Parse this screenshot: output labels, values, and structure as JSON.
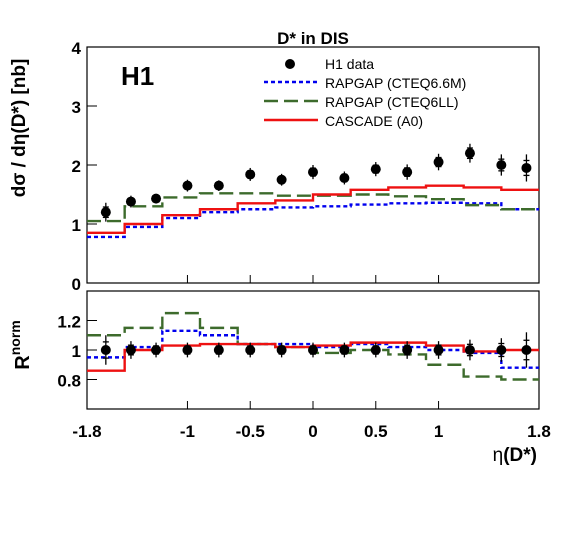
{
  "chart_data": {
    "type": "line",
    "title": "D* in DIS",
    "experiment_label": "H1",
    "x_tick_labels": [
      "-1.8",
      "-1",
      "-0.5",
      "0",
      "0.5",
      "1",
      "1.8"
    ],
    "x_ticks": [
      -1.8,
      -1,
      -0.5,
      0,
      0.5,
      1,
      1.8
    ],
    "xlabel_main": "η",
    "xlabel_suffix": "(D*)",
    "xlim": [
      -1.8,
      1.8
    ],
    "bin_edges": [
      -1.8,
      -1.5,
      -1.2,
      -0.9,
      -0.6,
      -0.3,
      0.0,
      0.3,
      0.6,
      0.9,
      1.2,
      1.5,
      1.8
    ],
    "panels": [
      {
        "id": "top",
        "ylabel": "dσ / dη(D*) [nb]",
        "ylim": [
          0,
          4
        ],
        "y_ticks": [
          0,
          1,
          2,
          3,
          4
        ],
        "y_tick_labels": [
          "0",
          "1",
          "2",
          "3",
          "4"
        ],
        "data": {
          "name": "H1 data",
          "x": [
            -1.65,
            -1.45,
            -1.25,
            -1.0,
            -0.75,
            -0.5,
            -0.25,
            0.0,
            0.25,
            0.5,
            0.75,
            1.0,
            1.25,
            1.5,
            1.7
          ],
          "y": [
            1.2,
            1.38,
            1.43,
            1.65,
            1.65,
            1.84,
            1.75,
            1.88,
            1.78,
            1.93,
            1.88,
            2.05,
            2.2,
            2.0,
            1.95
          ],
          "err": [
            0.16,
            0.1,
            0.08,
            0.1,
            0.09,
            0.11,
            0.1,
            0.12,
            0.11,
            0.12,
            0.13,
            0.14,
            0.16,
            0.18,
            0.23
          ]
        },
        "series": [
          {
            "name": "RAPGAP (CTEQ6.6M)",
            "color": "#0000ee",
            "style": "dotted",
            "values": [
              0.78,
              0.95,
              1.1,
              1.2,
              1.25,
              1.28,
              1.3,
              1.33,
              1.35,
              1.36,
              1.35,
              1.25
            ]
          },
          {
            "name": "RAPGAP (CTEQ6LL)",
            "color": "#3d6b2c",
            "style": "dashed",
            "values": [
              1.05,
              1.3,
              1.45,
              1.52,
              1.52,
              1.48,
              1.48,
              1.5,
              1.47,
              1.42,
              1.32,
              1.25
            ]
          },
          {
            "name": "CASCADE (A0)",
            "color": "#ee1111",
            "style": "solid",
            "values": [
              0.85,
              1.0,
              1.15,
              1.25,
              1.35,
              1.4,
              1.5,
              1.58,
              1.62,
              1.65,
              1.62,
              1.58
            ]
          }
        ]
      },
      {
        "id": "bottom",
        "ylabel_main": "R",
        "ylabel_sup": "norm",
        "ylim": [
          0.6,
          1.4
        ],
        "y_ticks": [
          0.8,
          1.0,
          1.2
        ],
        "y_tick_labels": [
          "0.8",
          "1",
          "1.2"
        ],
        "data": {
          "name": "H1 data",
          "x": [
            -1.65,
            -1.45,
            -1.25,
            -1.0,
            -0.75,
            -0.5,
            -0.25,
            0.0,
            0.25,
            0.5,
            0.75,
            1.0,
            1.25,
            1.5,
            1.7
          ],
          "y": [
            1.0,
            1.0,
            1.0,
            1.0,
            1.0,
            1.0,
            1.0,
            1.0,
            1.0,
            1.0,
            1.0,
            1.0,
            1.0,
            1.0,
            1.0
          ],
          "err": [
            0.1,
            0.06,
            0.05,
            0.05,
            0.05,
            0.05,
            0.05,
            0.05,
            0.05,
            0.05,
            0.06,
            0.06,
            0.07,
            0.08,
            0.12
          ]
        },
        "series": [
          {
            "name": "RAPGAP (CTEQ6.6M)",
            "color": "#0000ee",
            "style": "dotted",
            "values": [
              0.95,
              1.02,
              1.13,
              1.1,
              1.04,
              1.04,
              1.02,
              1.04,
              1.02,
              1.0,
              0.98,
              0.88
            ]
          },
          {
            "name": "RAPGAP (CTEQ6LL)",
            "color": "#3d6b2c",
            "style": "dashed",
            "values": [
              1.1,
              1.15,
              1.25,
              1.15,
              1.04,
              1.02,
              0.98,
              1.0,
              0.97,
              0.9,
              0.82,
              0.8
            ]
          },
          {
            "name": "CASCADE (A0)",
            "color": "#ee1111",
            "style": "solid",
            "values": [
              0.86,
              1.0,
              1.03,
              1.04,
              1.04,
              1.02,
              1.03,
              1.05,
              1.05,
              1.03,
              0.99,
              1.0
            ]
          }
        ]
      }
    ],
    "legend": {
      "placement": "top-right",
      "entries": [
        "H1 data",
        "RAPGAP (CTEQ6.6M)",
        "RAPGAP (CTEQ6LL)",
        "CASCADE (A0)"
      ]
    }
  }
}
